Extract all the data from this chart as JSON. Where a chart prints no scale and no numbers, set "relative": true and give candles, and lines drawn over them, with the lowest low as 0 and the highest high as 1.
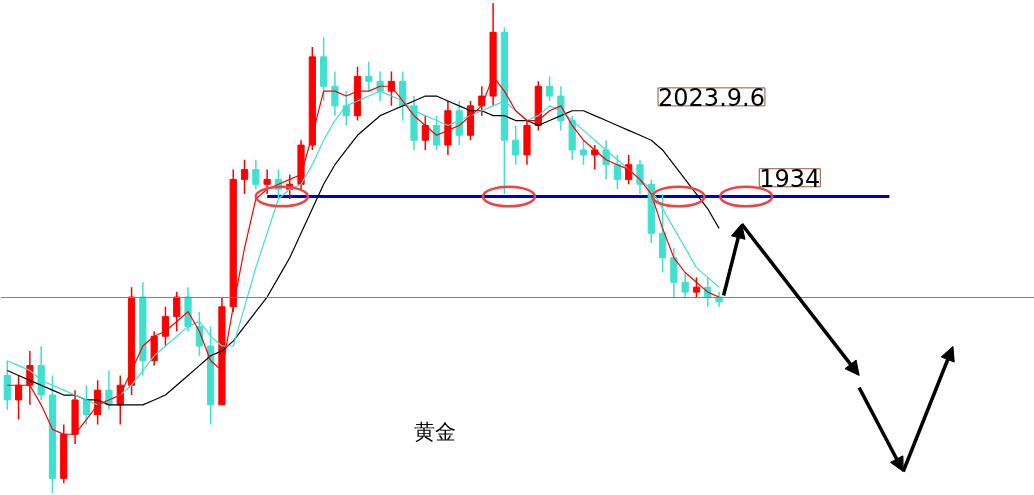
{
  "chart_data": {
    "type": "candlestick",
    "relative": true,
    "grid": false,
    "categories": [
      null,
      null,
      null,
      null,
      null,
      null,
      null,
      null,
      null,
      null,
      null,
      null,
      null,
      null,
      null,
      null,
      null,
      null,
      null,
      null,
      null,
      null,
      null,
      null,
      null,
      null,
      null,
      null,
      null,
      null,
      null,
      null,
      null,
      null,
      null,
      null,
      null,
      null,
      null,
      null,
      null,
      null,
      null,
      null,
      null,
      null,
      null,
      null,
      null,
      null,
      null,
      null,
      null,
      null,
      null,
      null,
      null,
      null,
      null,
      null,
      null,
      null,
      null,
      null
    ],
    "ohlc": [
      [
        0.24,
        0.27,
        0.17,
        0.19
      ],
      [
        0.19,
        0.24,
        0.15,
        0.22
      ],
      [
        0.22,
        0.29,
        0.18,
        0.26
      ],
      [
        0.26,
        0.3,
        0.19,
        0.2
      ],
      [
        0.2,
        0.24,
        0.0,
        0.03
      ],
      [
        0.03,
        0.14,
        0.02,
        0.12
      ],
      [
        0.12,
        0.21,
        0.1,
        0.19
      ],
      [
        0.19,
        0.22,
        0.14,
        0.16
      ],
      [
        0.16,
        0.23,
        0.14,
        0.21
      ],
      [
        0.21,
        0.25,
        0.17,
        0.18
      ],
      [
        0.18,
        0.24,
        0.14,
        0.22
      ],
      [
        0.22,
        0.42,
        0.2,
        0.4
      ],
      [
        0.4,
        0.43,
        0.24,
        0.27
      ],
      [
        0.27,
        0.33,
        0.26,
        0.32
      ],
      [
        0.32,
        0.38,
        0.3,
        0.36
      ],
      [
        0.36,
        0.41,
        0.33,
        0.4
      ],
      [
        0.4,
        0.42,
        0.33,
        0.34
      ],
      [
        0.34,
        0.37,
        0.28,
        0.3
      ],
      [
        0.3,
        0.34,
        0.14,
        0.18
      ],
      [
        0.18,
        0.4,
        0.18,
        0.38
      ],
      [
        0.38,
        0.66,
        0.37,
        0.64
      ],
      [
        0.64,
        0.68,
        0.61,
        0.66
      ],
      [
        0.66,
        0.68,
        0.62,
        0.63
      ],
      [
        0.63,
        0.66,
        0.61,
        0.64
      ],
      [
        0.64,
        0.66,
        0.6,
        0.62
      ],
      [
        0.62,
        0.65,
        0.6,
        0.63
      ],
      [
        0.63,
        0.72,
        0.62,
        0.71
      ],
      [
        0.71,
        0.91,
        0.7,
        0.89
      ],
      [
        0.89,
        0.93,
        0.8,
        0.83
      ],
      [
        0.83,
        0.86,
        0.77,
        0.79
      ],
      [
        0.79,
        0.82,
        0.75,
        0.77
      ],
      [
        0.77,
        0.87,
        0.76,
        0.85
      ],
      [
        0.85,
        0.88,
        0.82,
        0.84
      ],
      [
        0.84,
        0.86,
        0.8,
        0.82
      ],
      [
        0.82,
        0.86,
        0.79,
        0.84
      ],
      [
        0.84,
        0.86,
        0.76,
        0.79
      ],
      [
        0.79,
        0.81,
        0.7,
        0.72
      ],
      [
        0.72,
        0.77,
        0.7,
        0.75
      ],
      [
        0.75,
        0.77,
        0.7,
        0.71
      ],
      [
        0.71,
        0.8,
        0.69,
        0.78
      ],
      [
        0.78,
        0.8,
        0.71,
        0.73
      ],
      [
        0.73,
        0.8,
        0.72,
        0.79
      ],
      [
        0.79,
        0.83,
        0.77,
        0.81
      ],
      [
        0.81,
        1.0,
        0.79,
        0.94
      ],
      [
        0.94,
        0.95,
        0.61,
        0.72
      ],
      [
        0.72,
        0.75,
        0.67,
        0.69
      ],
      [
        0.69,
        0.76,
        0.67,
        0.75
      ],
      [
        0.75,
        0.84,
        0.74,
        0.83
      ],
      [
        0.83,
        0.85,
        0.8,
        0.81
      ],
      [
        0.81,
        0.83,
        0.74,
        0.76
      ],
      [
        0.76,
        0.77,
        0.68,
        0.7
      ],
      [
        0.7,
        0.72,
        0.67,
        0.69
      ],
      [
        0.69,
        0.71,
        0.66,
        0.7
      ],
      [
        0.7,
        0.72,
        0.64,
        0.67
      ],
      [
        0.67,
        0.69,
        0.62,
        0.64
      ],
      [
        0.64,
        0.69,
        0.63,
        0.67
      ],
      [
        0.67,
        0.68,
        0.61,
        0.63
      ],
      [
        0.63,
        0.64,
        0.51,
        0.53
      ],
      [
        0.53,
        0.61,
        0.45,
        0.48
      ],
      [
        0.48,
        0.5,
        0.4,
        0.43
      ],
      [
        0.43,
        0.45,
        0.4,
        0.41
      ],
      [
        0.41,
        0.44,
        0.4,
        0.42
      ],
      [
        0.42,
        0.44,
        0.38,
        0.4
      ],
      [
        0.4,
        0.41,
        0.38,
        0.39
      ]
    ],
    "colors": [
      "#40e0d0",
      "#ff0000",
      "#ff0000",
      "#40e0d0",
      "#40e0d0",
      "#ff0000",
      "#ff0000",
      "#40e0d0",
      "#ff0000",
      "#40e0d0",
      "#ff0000",
      "#ff0000",
      "#40e0d0",
      "#ff0000",
      "#ff0000",
      "#ff0000",
      "#40e0d0",
      "#40e0d0",
      "#40e0d0",
      "#ff0000",
      "#ff0000",
      "#ff0000",
      "#40e0d0",
      "#ff0000",
      "#40e0d0",
      "#ff0000",
      "#ff0000",
      "#ff0000",
      "#40e0d0",
      "#40e0d0",
      "#40e0d0",
      "#ff0000",
      "#40e0d0",
      "#40e0d0",
      "#ff0000",
      "#40e0d0",
      "#40e0d0",
      "#ff0000",
      "#40e0d0",
      "#ff0000",
      "#40e0d0",
      "#ff0000",
      "#ff0000",
      "#ff0000",
      "#40e0d0",
      "#40e0d0",
      "#ff0000",
      "#ff0000",
      "#40e0d0",
      "#40e0d0",
      "#40e0d0",
      "#40e0d0",
      "#ff0000",
      "#40e0d0",
      "#40e0d0",
      "#ff0000",
      "#40e0d0",
      "#40e0d0",
      "#40e0d0",
      "#40e0d0",
      "#40e0d0",
      "#ff0000",
      "#40e0d0",
      "#40e0d0"
    ],
    "series": [
      {
        "type": "line",
        "color": "#000000",
        "values": [
          0.25,
          0.24,
          0.23,
          0.22,
          0.21,
          0.2,
          0.2,
          0.19,
          0.19,
          0.18,
          0.18,
          0.18,
          0.18,
          0.19,
          0.2,
          0.22,
          0.24,
          0.26,
          0.28,
          0.29,
          0.31,
          0.34,
          0.37,
          0.4,
          0.44,
          0.48,
          0.53,
          0.58,
          0.63,
          0.67,
          0.7,
          0.73,
          0.75,
          0.77,
          0.78,
          0.79,
          0.8,
          0.81,
          0.81,
          0.8,
          0.79,
          0.78,
          0.78,
          0.77,
          0.77,
          0.76,
          0.76,
          0.75,
          0.76,
          0.77,
          0.78,
          0.78,
          0.77,
          0.76,
          0.75,
          0.74,
          0.73,
          0.72,
          0.7,
          0.67,
          0.64,
          0.61,
          0.58,
          0.54
        ]
      },
      {
        "type": "line",
        "color": "#40e0d0",
        "values": [
          0.27,
          0.26,
          0.25,
          0.23,
          0.22,
          0.21,
          0.2,
          0.19,
          0.18,
          0.19,
          0.2,
          0.22,
          0.25,
          0.28,
          0.3,
          0.32,
          0.34,
          0.35,
          0.32,
          0.3,
          0.3,
          0.38,
          0.46,
          0.53,
          0.6,
          0.62,
          0.63,
          0.67,
          0.72,
          0.76,
          0.79,
          0.8,
          0.81,
          0.82,
          0.81,
          0.8,
          0.78,
          0.77,
          0.76,
          0.75,
          0.76,
          0.77,
          0.78,
          0.79,
          0.8,
          0.78,
          0.76,
          0.77,
          0.79,
          0.78,
          0.76,
          0.74,
          0.72,
          0.7,
          0.68,
          0.66,
          0.64,
          0.62,
          0.58,
          0.54,
          0.5,
          0.46,
          0.44,
          0.42
        ]
      },
      {
        "type": "line",
        "color": "#ff0000",
        "values": [
          0.22,
          0.22,
          0.22,
          0.18,
          0.13,
          0.12,
          0.12,
          0.15,
          0.18,
          0.19,
          0.2,
          0.25,
          0.3,
          0.32,
          0.33,
          0.35,
          0.37,
          0.33,
          0.27,
          0.25,
          0.38,
          0.5,
          0.6,
          0.62,
          0.63,
          0.64,
          0.65,
          0.73,
          0.82,
          0.82,
          0.81,
          0.82,
          0.82,
          0.83,
          0.83,
          0.8,
          0.77,
          0.75,
          0.73,
          0.74,
          0.75,
          0.77,
          0.79,
          0.85,
          0.82,
          0.78,
          0.76,
          0.76,
          0.78,
          0.79,
          0.75,
          0.72,
          0.7,
          0.68,
          0.67,
          0.66,
          0.64,
          0.61,
          0.54,
          0.48,
          0.45,
          0.43,
          0.41,
          0.4
        ]
      }
    ],
    "ref_lines": [
      {
        "axis": "y",
        "value": 0.605,
        "color": "#0000cd"
      },
      {
        "axis": "y",
        "value": 0.399,
        "color": "#6e8796"
      }
    ],
    "annotations": [
      "2023.9.6",
      "1934",
      "黄金"
    ]
  }
}
